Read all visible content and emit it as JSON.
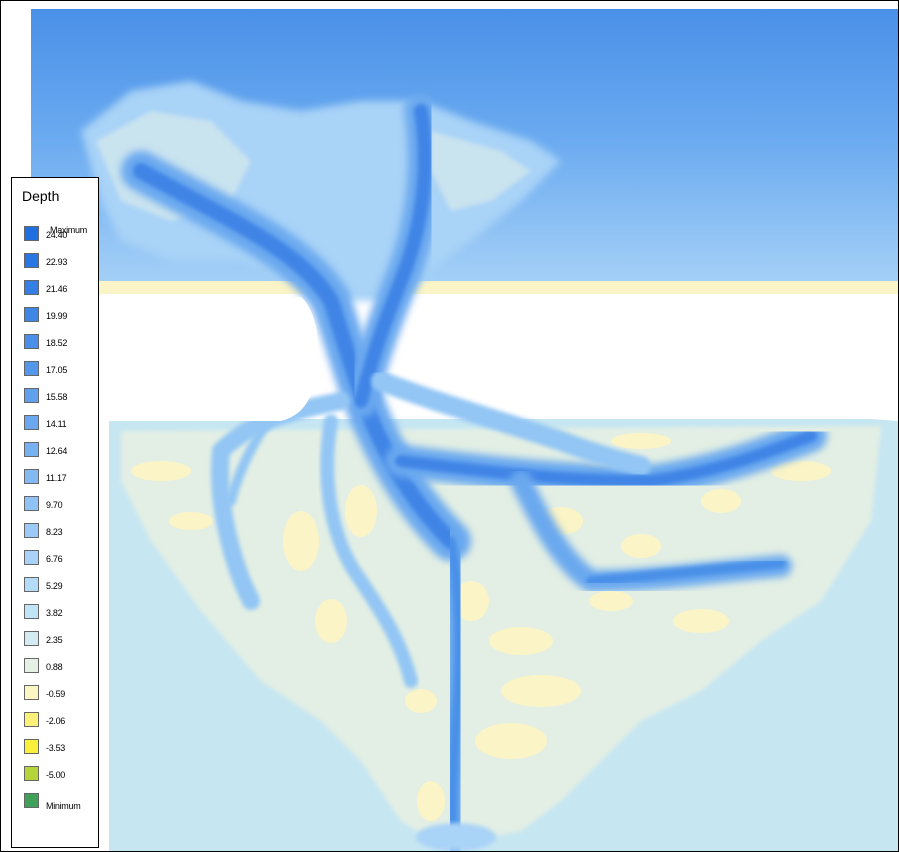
{
  "legend": {
    "title": "Depth",
    "max_label": "Maximum",
    "min_label": "Minimum",
    "entries": [
      {
        "value": "24.40",
        "color": "#1f6fe0"
      },
      {
        "value": "22.93",
        "color": "#2a77e3"
      },
      {
        "value": "21.46",
        "color": "#347fe5"
      },
      {
        "value": "19.99",
        "color": "#3f87e7"
      },
      {
        "value": "18.52",
        "color": "#4a8fe9"
      },
      {
        "value": "17.05",
        "color": "#5597eb"
      },
      {
        "value": "15.58",
        "color": "#60a0ed"
      },
      {
        "value": "14.11",
        "color": "#6ca8ef"
      },
      {
        "value": "12.64",
        "color": "#78b1f1"
      },
      {
        "value": "11.17",
        "color": "#84b9f3"
      },
      {
        "value": "9.70",
        "color": "#90c2f5"
      },
      {
        "value": "8.23",
        "color": "#9ccaf6"
      },
      {
        "value": "6.76",
        "color": "#a8d2f7"
      },
      {
        "value": "5.29",
        "color": "#b4dbf8"
      },
      {
        "value": "3.82",
        "color": "#c2e4f7"
      },
      {
        "value": "2.35",
        "color": "#d4ebf1"
      },
      {
        "value": "0.88",
        "color": "#e6f1e6"
      },
      {
        "value": "-0.59",
        "color": "#fbf6c2"
      },
      {
        "value": "-2.06",
        "color": "#fbf07a"
      },
      {
        "value": "-3.53",
        "color": "#f8f03a"
      },
      {
        "value": "-5.00",
        "color": "#b5d43a"
      },
      {
        "value": "Minimum",
        "color": "#3fa05a"
      }
    ]
  },
  "map": {
    "colors": {
      "deep_sea": "#4a90e8",
      "sea_mid": "#7db7f2",
      "sea_light": "#a9d3f7",
      "shallow": "#c6e6f2",
      "flat": "#e3efe4",
      "sand": "#fbf4c6",
      "land_gap": "#ffffff",
      "channel_deep": "#3f84e6",
      "channel_mid": "#6aa9ef",
      "channel_light": "#93c6f4"
    }
  }
}
